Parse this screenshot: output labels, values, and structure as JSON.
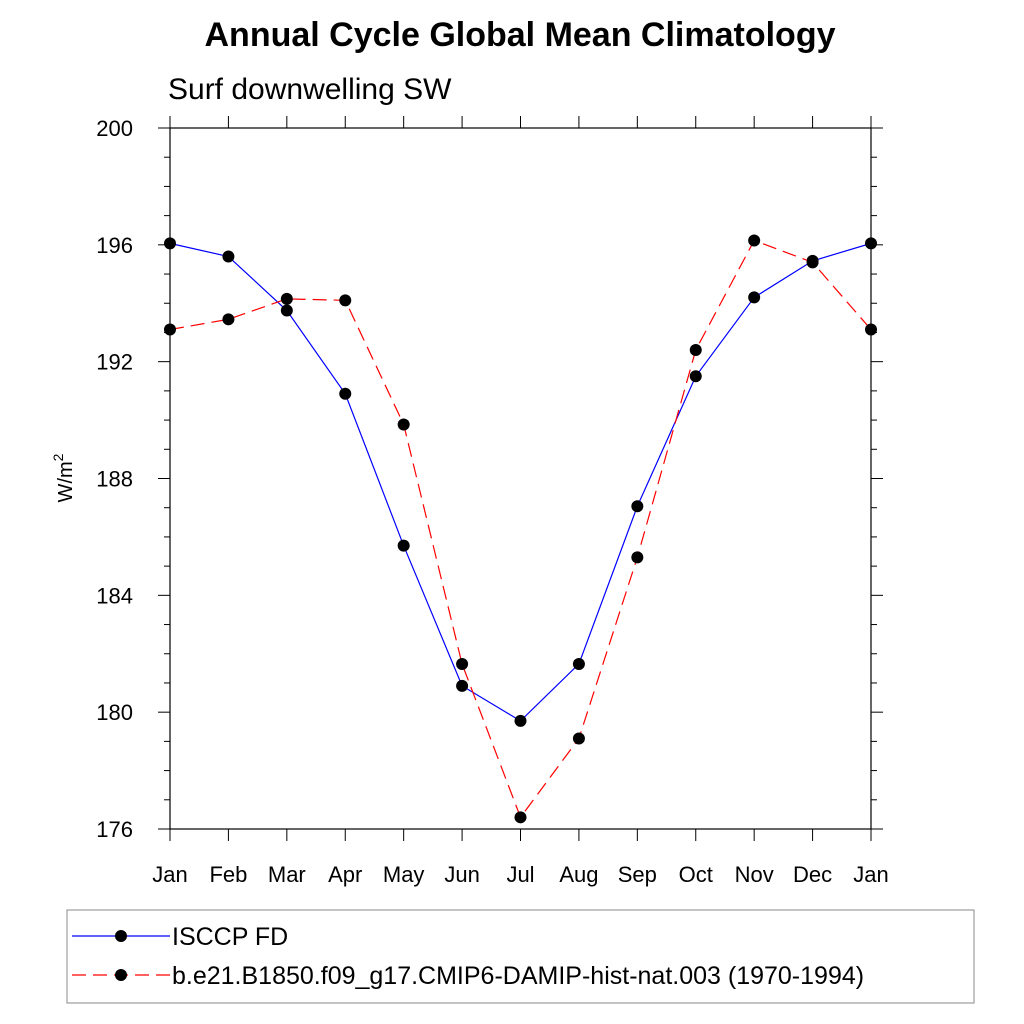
{
  "chart_data": {
    "type": "line",
    "title": "Annual Cycle Global Mean Climatology",
    "subtitle": "Surf downwelling SW",
    "ylabel_main": "W/m",
    "ylabel_sup": "2",
    "xlabel": "",
    "categories": [
      "Jan",
      "Feb",
      "Mar",
      "Apr",
      "May",
      "Jun",
      "Jul",
      "Aug",
      "Sep",
      "Oct",
      "Nov",
      "Dec",
      "Jan"
    ],
    "ylim": [
      176,
      200
    ],
    "yticks": [
      176,
      180,
      184,
      188,
      192,
      196,
      200
    ],
    "grid": false,
    "legend_position": "bottom",
    "series": [
      {
        "name": "ISCCP FD",
        "color": "#0000ff",
        "dash": "solid",
        "values": [
          196.05,
          195.6,
          193.75,
          190.9,
          185.7,
          180.9,
          179.7,
          181.65,
          187.05,
          191.5,
          194.2,
          195.45,
          196.05
        ]
      },
      {
        "name": "b.e21.B1850.f09_g17.CMIP6-DAMIP-hist-nat.003 (1970-1994)",
        "color": "#ff0000",
        "dash": "dashed",
        "values": [
          193.1,
          193.45,
          194.15,
          194.1,
          189.85,
          181.65,
          176.4,
          179.1,
          185.3,
          192.4,
          196.15,
          195.4,
          193.1
        ]
      }
    ]
  }
}
